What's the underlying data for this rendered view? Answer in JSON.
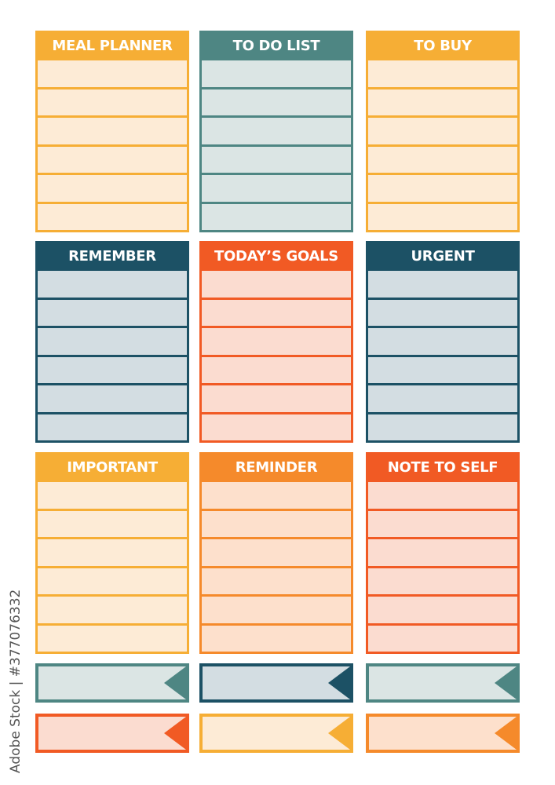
{
  "colors": {
    "yellow": "#f6ae35",
    "teal": "#4e8683",
    "navy": "#1c5165",
    "red": "#f15a24",
    "orange": "#f58a2b"
  },
  "cards": [
    {
      "title": "MEAL PLANNER",
      "color": "#f6ae35",
      "fill": "#fdebd6"
    },
    {
      "title": "TO DO LIST",
      "color": "#4e8683",
      "fill": "#dbe5e4"
    },
    {
      "title": "TO BUY",
      "color": "#f6ae35",
      "fill": "#fdebd6"
    },
    {
      "title": "REMEMBER",
      "color": "#1c5165",
      "fill": "#d3dde2"
    },
    {
      "title": "TODAY’S GOALS",
      "color": "#f15a24",
      "fill": "#fbdcd0"
    },
    {
      "title": "URGENT",
      "color": "#1c5165",
      "fill": "#d3dde2"
    },
    {
      "title": "IMPORTANT",
      "color": "#f6ae35",
      "fill": "#fdebd6"
    },
    {
      "title": "REMINDER",
      "color": "#f58a2b",
      "fill": "#fde0cc"
    },
    {
      "title": "NOTE TO SELF",
      "color": "#f15a24",
      "fill": "#fbdcd0"
    }
  ],
  "banners": [
    {
      "color": "#4e8683",
      "fill": "#dbe5e4"
    },
    {
      "color": "#1c5165",
      "fill": "#d3dde2"
    },
    {
      "color": "#4e8683",
      "fill": "#dbe5e4"
    },
    {
      "color": "#f15a24",
      "fill": "#fbdcd0"
    },
    {
      "color": "#f6ae35",
      "fill": "#fdebd6"
    },
    {
      "color": "#f58a2b",
      "fill": "#fde0cc"
    }
  ],
  "watermark": "Adobe Stock | #377076332"
}
